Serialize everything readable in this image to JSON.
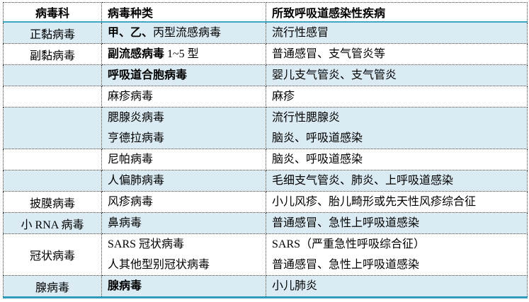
{
  "colors": {
    "band_fill": "#daebf3",
    "teal_border": "#41a6c3",
    "teal_border_bottom": "#2f9cbd",
    "dotted_border": "#3a3a3a",
    "text": "#000000"
  },
  "table": {
    "headers": [
      "病毒科",
      "病毒种类",
      "所致呼吸道感染性疾病"
    ],
    "rows": [
      {
        "family": "正黏病毒",
        "species": [
          [
            {
              "text": "甲、乙、",
              "bold": true
            },
            {
              "text": "丙型流感病毒",
              "bold": false
            }
          ]
        ],
        "diseases": [
          "流行性感冒"
        ],
        "shaded": true
      },
      {
        "family": "副黏病毒",
        "species": [
          [
            {
              "text": "副流感病毒",
              "bold": true
            },
            {
              "text": " 1~5 型",
              "bold": false
            }
          ]
        ],
        "diseases": [
          "普通感冒、支气管炎等"
        ],
        "shaded": false
      },
      {
        "family": "",
        "species": [
          [
            {
              "text": "呼吸道合胞病毒",
              "bold": true
            }
          ]
        ],
        "diseases": [
          "婴儿支气管炎、支气管炎"
        ],
        "shaded": true
      },
      {
        "family": "",
        "species": [
          [
            {
              "text": "麻疹病毒",
              "bold": false
            }
          ]
        ],
        "diseases": [
          "麻疹"
        ],
        "shaded": false
      },
      {
        "family": "",
        "species": [
          [
            {
              "text": "腮腺炎病毒",
              "bold": false
            }
          ],
          [
            {
              "text": "亨德拉病毒",
              "bold": false
            }
          ]
        ],
        "diseases": [
          "流行性腮腺炎",
          "脑炎、呼吸道感染"
        ],
        "shaded": true
      },
      {
        "family": "",
        "species": [
          [
            {
              "text": "尼帕病毒",
              "bold": false
            }
          ]
        ],
        "diseases": [
          "脑炎、呼吸道感染"
        ],
        "shaded": false
      },
      {
        "family": "",
        "species": [
          [
            {
              "text": "人偏肺病毒",
              "bold": false
            }
          ]
        ],
        "diseases": [
          "毛细支气管炎、肺炎、上呼吸道感染"
        ],
        "shaded": true
      },
      {
        "family": "披膜病毒",
        "species": [
          [
            {
              "text": "风疹病毒",
              "bold": false
            }
          ]
        ],
        "diseases": [
          "小儿风疹、胎儿畸形或先天性风疹综合征"
        ],
        "shaded": false
      },
      {
        "family": "小 RNA 病毒",
        "species": [
          [
            {
              "text": "鼻病毒",
              "bold": false
            }
          ]
        ],
        "diseases": [
          "普通感冒、急性上呼吸道感染"
        ],
        "shaded": true
      },
      {
        "family": "冠状病毒",
        "species": [
          [
            {
              "text": "SARS 冠状病毒",
              "bold": false
            }
          ],
          [
            {
              "text": "人其他型别冠状病毒",
              "bold": false
            }
          ]
        ],
        "diseases": [
          "SARS（严重急性呼吸综合征）",
          "普通感冒、急性上呼吸道感染"
        ],
        "shaded": false
      },
      {
        "family": "腺病毒",
        "species": [
          [
            {
              "text": "腺病毒",
              "bold": true
            }
          ]
        ],
        "diseases": [
          "小儿肺炎"
        ],
        "shaded": true
      }
    ]
  }
}
